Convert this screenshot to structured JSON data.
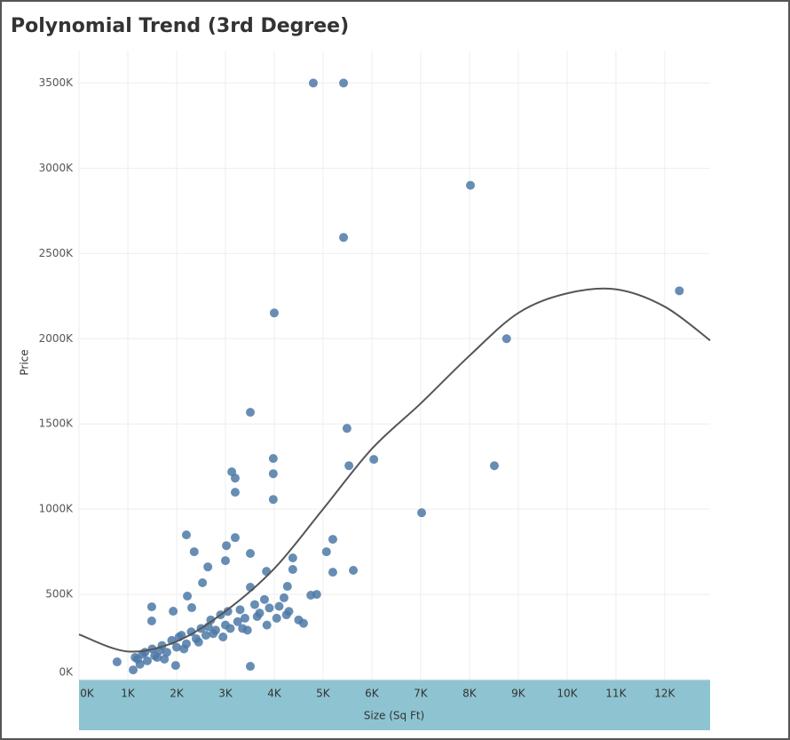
{
  "chart_data": {
    "type": "scatter",
    "title": "Polynomial Trend (3rd Degree)",
    "x_label": "Size (Sq Ft)",
    "y_label": "Price",
    "color": "#4e79a7",
    "grid": true,
    "x": [
      4800,
      5420,
      8020,
      5420,
      12300,
      8760,
      4000,
      3510,
      5490,
      3980,
      6040,
      5530,
      8510,
      3130,
      3200,
      3980,
      3200,
      3980,
      7020,
      2200,
      3200,
      5200,
      3020,
      2360,
      3510,
      5070,
      4380,
      3000,
      2640,
      4380,
      5620,
      3840,
      5200,
      2530,
      3510,
      4270,
      4750,
      4870,
      2220,
      1490,
      1930,
      2310,
      1490,
      3510,
      780,
      1110,
      1980,
      1200,
      1300,
      1400,
      1500,
      1600,
      1700,
      1800,
      1900,
      2000,
      2100,
      2200,
      2300,
      2400,
      2500,
      2600,
      2700,
      2800,
      2900,
      3000,
      3100,
      3300,
      3400,
      3600,
      3700,
      3800,
      3900,
      4100,
      4200,
      4300,
      4500,
      4600,
      1250,
      1550,
      1650,
      1750,
      2050,
      2450,
      2750,
      3050,
      3250,
      3450,
      3650,
      3850,
      4050,
      4250,
      1150,
      1350,
      2150,
      2650,
      2950,
      3350
    ],
    "values": [
      3500000,
      3500000,
      2900000,
      2594000,
      2281000,
      2000000,
      2151000,
      1568000,
      1474000,
      1297000,
      1292000,
      1255000,
      1255000,
      1219000,
      1182000,
      1208000,
      1099000,
      1057000,
      979000,
      849000,
      833000,
      823000,
      786000,
      750000,
      740000,
      750000,
      714000,
      698000,
      661000,
      646000,
      641000,
      635000,
      630000,
      568000,
      542000,
      547000,
      495000,
      500000,
      490000,
      427000,
      401000,
      422000,
      344000,
      78000,
      104000,
      57000,
      83000,
      120000,
      150000,
      110000,
      180000,
      130000,
      200000,
      160000,
      230000,
      190000,
      260000,
      210000,
      280000,
      240000,
      300000,
      260000,
      350000,
      290000,
      380000,
      320000,
      300000,
      410000,
      360000,
      440000,
      390000,
      470000,
      420000,
      430000,
      480000,
      400000,
      350000,
      330000,
      90000,
      140000,
      170000,
      120000,
      250000,
      220000,
      270000,
      400000,
      340000,
      290000,
      370000,
      320000,
      360000,
      380000,
      130000,
      160000,
      180000,
      310000,
      250000,
      300000
    ],
    "trend": {
      "color": "#555555",
      "x": [
        0,
        1000,
        2000,
        3000,
        4000,
        5000,
        6000,
        7000,
        8000,
        9000,
        10000,
        11000,
        12000,
        12930
      ],
      "values": [
        265000,
        165000,
        224000,
        401000,
        651000,
        1000000,
        1354000,
        1620000,
        1900000,
        2151000,
        2266000,
        2290000,
        2188000,
        1990000
      ]
    },
    "xlim": [
      0,
      12930
    ],
    "ylim": [
      0,
      3690000
    ],
    "xticks": [
      {
        "value": 0,
        "label": "0K"
      },
      {
        "value": 1000,
        "label": "1K"
      },
      {
        "value": 2000,
        "label": "2K"
      },
      {
        "value": 3000,
        "label": "3K"
      },
      {
        "value": 4000,
        "label": "4K"
      },
      {
        "value": 5000,
        "label": "5K"
      },
      {
        "value": 6000,
        "label": "6K"
      },
      {
        "value": 7000,
        "label": "7K"
      },
      {
        "value": 8000,
        "label": "8K"
      },
      {
        "value": 9000,
        "label": "9K"
      },
      {
        "value": 10000,
        "label": "10K"
      },
      {
        "value": 11000,
        "label": "11K"
      },
      {
        "value": 12000,
        "label": "12K"
      }
    ],
    "yticks": [
      {
        "value": 0,
        "label": "0K"
      },
      {
        "value": 500000,
        "label": "500K"
      },
      {
        "value": 1000000,
        "label": "1000K"
      },
      {
        "value": 1500000,
        "label": "1500K"
      },
      {
        "value": 2000000,
        "label": "2000K"
      },
      {
        "value": 2500000,
        "label": "2500K"
      },
      {
        "value": 3000000,
        "label": "3000K"
      },
      {
        "value": 3500000,
        "label": "3500K"
      }
    ]
  }
}
